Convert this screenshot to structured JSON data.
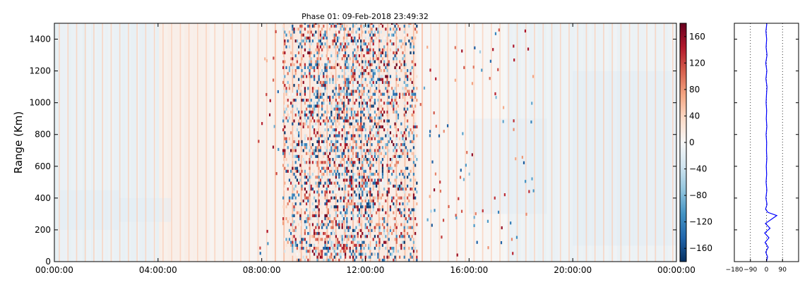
{
  "chart_data": [
    {
      "type": "heatmap",
      "title": "Phase 01: 09-Feb-2018 23:49:32",
      "xlabel": "",
      "ylabel": "Range (Km)",
      "ylim": [
        0,
        1500
      ],
      "yticks": [
        "0",
        "200",
        "400",
        "600",
        "800",
        "1000",
        "1200",
        "1400"
      ],
      "ytick_values": [
        0,
        200,
        400,
        600,
        800,
        1000,
        1200,
        1400
      ],
      "xlim_hours": [
        0,
        24
      ],
      "xticks": [
        "00:00:00",
        "04:00:00",
        "08:00:00",
        "12:00:00",
        "16:00:00",
        "20:00:00",
        "00:00:00"
      ],
      "xtick_hours": [
        0,
        4,
        8,
        12,
        16,
        20,
        24
      ],
      "colormap": "RdBu_r",
      "colorbar": {
        "range": [
          -180,
          180
        ],
        "ticks": [
          "−160",
          "−120",
          "−80",
          "−40",
          "0",
          "40",
          "80",
          "120",
          "160"
        ],
        "tick_values": [
          -160,
          -120,
          -80,
          -40,
          0,
          40,
          80,
          120,
          160
        ]
      },
      "column_stripe_interval_minutes": 20,
      "noisy_region_hours": [
        8.8,
        14.0
      ],
      "colors": {
        "high": "#67001f",
        "low": "#053061",
        "mid": "#f7f7f7"
      }
    },
    {
      "type": "line",
      "title": "",
      "xlabel": "",
      "ylabel": "",
      "xlim": [
        -180,
        180
      ],
      "ylim": [
        0,
        1500
      ],
      "xticks": [
        "−180",
        "−90",
        "0",
        "90"
      ],
      "xtick_values": [
        -180,
        -90,
        0,
        90
      ],
      "reference_lines": [
        -90,
        0,
        90
      ],
      "series": [
        {
          "color": "#0000ff",
          "points": [
            [
              0,
              0
            ],
            [
              6,
              30
            ],
            [
              -4,
              60
            ],
            [
              10,
              90
            ],
            [
              -8,
              120
            ],
            [
              14,
              150
            ],
            [
              -10,
              180
            ],
            [
              20,
              210
            ],
            [
              -6,
              240
            ],
            [
              58,
              290
            ],
            [
              8,
              310
            ],
            [
              -5,
              330
            ],
            [
              3,
              360
            ],
            [
              -3,
              400
            ],
            [
              2,
              450
            ],
            [
              -2,
              500
            ],
            [
              1,
              550
            ],
            [
              -1,
              600
            ],
            [
              2,
              650
            ],
            [
              0,
              700
            ],
            [
              1,
              750
            ],
            [
              -2,
              800
            ],
            [
              2,
              850
            ],
            [
              -1,
              900
            ],
            [
              1,
              950
            ],
            [
              -2,
              1000
            ],
            [
              0,
              1050
            ],
            [
              3,
              1100
            ],
            [
              -3,
              1150
            ],
            [
              2,
              1200
            ],
            [
              -4,
              1250
            ],
            [
              3,
              1300
            ],
            [
              -2,
              1350
            ],
            [
              1,
              1400
            ],
            [
              -3,
              1450
            ],
            [
              2,
              1500
            ]
          ]
        }
      ]
    }
  ]
}
